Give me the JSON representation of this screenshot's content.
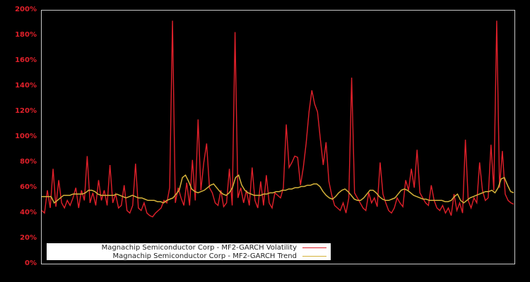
{
  "chart_data": {
    "type": "line",
    "title": "",
    "xlabel": "",
    "ylabel": "",
    "ylim": [
      0,
      200
    ],
    "y_ticks": [
      "0%",
      "20%",
      "40%",
      "60%",
      "80%",
      "100%",
      "120%",
      "140%",
      "160%",
      "180%",
      "200%"
    ],
    "x_ticks": [],
    "grid": false,
    "legend_position": "lower-left",
    "background": "#000000",
    "series": [
      {
        "name": "Magnachip Semiconductor Corp - MF2-GARCH Volatility",
        "color": "#e0202a",
        "values": [
          42,
          40,
          58,
          44,
          75,
          45,
          66,
          48,
          44,
          50,
          46,
          52,
          60,
          44,
          58,
          50,
          85,
          48,
          56,
          46,
          66,
          50,
          58,
          46,
          78,
          48,
          55,
          44,
          46,
          62,
          42,
          40,
          46,
          79,
          44,
          42,
          48,
          40,
          38,
          37,
          40,
          42,
          44,
          50,
          48,
          60,
          192,
          48,
          60,
          52,
          46,
          64,
          46,
          82,
          50,
          114,
          58,
          80,
          95,
          60,
          56,
          48,
          46,
          58,
          45,
          48,
          75,
          46,
          183,
          52,
          60,
          48,
          58,
          46,
          76,
          50,
          44,
          65,
          46,
          70,
          48,
          44,
          56,
          54,
          52,
          60,
          110,
          76,
          80,
          85,
          84,
          62,
          76,
          95,
          120,
          137,
          126,
          120,
          98,
          78,
          96,
          65,
          54,
          46,
          44,
          42,
          48,
          40,
          52,
          147,
          56,
          52,
          48,
          44,
          42,
          56,
          48,
          52,
          45,
          80,
          55,
          48,
          42,
          40,
          44,
          52,
          48,
          45,
          66,
          58,
          75,
          60,
          90,
          56,
          52,
          48,
          46,
          62,
          50,
          44,
          42,
          46,
          40,
          44,
          38,
          55,
          42,
          48,
          40,
          98,
          50,
          44,
          52,
          48,
          80,
          58,
          50,
          52,
          94,
          58,
          192,
          60,
          89,
          55,
          50,
          48,
          47
        ],
        "x_px": "evenly spaced from 59 to 727"
      },
      {
        "name": "Magnachip Semiconductor Corp - MF2-GARCH Trend",
        "color": "#d4b23a",
        "values": [
          53,
          53,
          53,
          53,
          48,
          50,
          52,
          54,
          54,
          54,
          55,
          55,
          55,
          55,
          56,
          58,
          58,
          57,
          55,
          54,
          54,
          54,
          54,
          54,
          55,
          54,
          53,
          52,
          53,
          54,
          53,
          52,
          52,
          51,
          50,
          50,
          50,
          49,
          49,
          48,
          50,
          51,
          52,
          55,
          58,
          68,
          70,
          65,
          59,
          57,
          56,
          57,
          58,
          60,
          62,
          63,
          60,
          57,
          55,
          54,
          56,
          60,
          68,
          70,
          62,
          58,
          56,
          55,
          54,
          54,
          54,
          55,
          55,
          56,
          56,
          57,
          57,
          58,
          58,
          59,
          59,
          60,
          60,
          61,
          61,
          62,
          62,
          63,
          63,
          61,
          57,
          54,
          52,
          51,
          53,
          56,
          58,
          59,
          57,
          54,
          51,
          50,
          50,
          52,
          55,
          58,
          58,
          56,
          53,
          51,
          50,
          50,
          51,
          52,
          55,
          58,
          59,
          58,
          56,
          54,
          53,
          52,
          51,
          51,
          50,
          50,
          50,
          50,
          50,
          49,
          49,
          50,
          53,
          55,
          50,
          48,
          50,
          52,
          53,
          54,
          55,
          56,
          57,
          57,
          58,
          56,
          60,
          67,
          68,
          62,
          57,
          56
        ],
        "x_px": "evenly spaced from 59 to 727"
      }
    ]
  },
  "legend": {
    "items": [
      {
        "label": "Magnachip Semiconductor Corp - MF2-GARCH Volatility",
        "color": "#e0202a"
      },
      {
        "label": "Magnachip Semiconductor Corp - MF2-GARCH Trend",
        "color": "#d4b23a"
      }
    ]
  }
}
